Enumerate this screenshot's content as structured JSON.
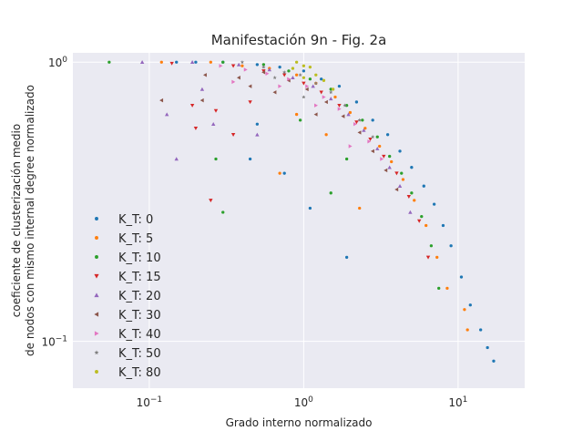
{
  "chart_data": {
    "type": "scatter",
    "title": "Manifestación 9n - Fig. 2a",
    "xlabel": "Grado interno normalizado",
    "ylabel_line1": "coeficiente de clusterización medio",
    "ylabel_line2": "de nodos con mismo internal degree normalizado",
    "x_scale": "log",
    "y_scale": "log",
    "xlim": [
      0.032,
      27
    ],
    "ylim": [
      0.068,
      1.08
    ],
    "x_ticks": [
      {
        "value": 0.1,
        "base": "10",
        "exp": "−1"
      },
      {
        "value": 1,
        "base": "10",
        "exp": "0"
      },
      {
        "value": 10,
        "base": "10",
        "exp": "1"
      }
    ],
    "y_ticks": [
      {
        "value": 0.1,
        "base": "10",
        "exp": "−1"
      },
      {
        "value": 1,
        "base": "10",
        "exp": "0"
      }
    ],
    "grid": true,
    "legend_position": "lower-left",
    "series": [
      {
        "name": "K_T: 0",
        "color": "#1f77b4",
        "marker": "circle",
        "points": [
          [
            0.15,
            1.0
          ],
          [
            0.2,
            1.0
          ],
          [
            0.3,
            1.0
          ],
          [
            0.5,
            0.98
          ],
          [
            0.7,
            0.96
          ],
          [
            1.0,
            0.93
          ],
          [
            1.3,
            0.87
          ],
          [
            1.7,
            0.82
          ],
          [
            2.2,
            0.72
          ],
          [
            2.8,
            0.62
          ],
          [
            3.5,
            0.55
          ],
          [
            4.2,
            0.48
          ],
          [
            5.0,
            0.42
          ],
          [
            6.0,
            0.36
          ],
          [
            7.0,
            0.31
          ],
          [
            8.0,
            0.26
          ],
          [
            9.0,
            0.22
          ],
          [
            10.5,
            0.17
          ],
          [
            12.0,
            0.135
          ],
          [
            14.0,
            0.11
          ],
          [
            15.5,
            0.095
          ],
          [
            17.0,
            0.085
          ],
          [
            0.45,
            0.45
          ],
          [
            1.1,
            0.3
          ],
          [
            1.9,
            0.2
          ],
          [
            0.75,
            0.4
          ],
          [
            0.5,
            0.6
          ]
        ]
      },
      {
        "name": "K_T: 5",
        "color": "#ff7f0e",
        "marker": "circle",
        "points": [
          [
            0.12,
            1.0
          ],
          [
            0.25,
            1.0
          ],
          [
            0.4,
            0.97
          ],
          [
            0.6,
            0.95
          ],
          [
            0.9,
            0.9
          ],
          [
            1.2,
            0.84
          ],
          [
            1.6,
            0.75
          ],
          [
            2.0,
            0.66
          ],
          [
            2.5,
            0.58
          ],
          [
            3.1,
            0.5
          ],
          [
            3.7,
            0.44
          ],
          [
            4.4,
            0.38
          ],
          [
            5.2,
            0.32
          ],
          [
            6.2,
            0.26
          ],
          [
            7.3,
            0.2
          ],
          [
            8.5,
            0.155
          ],
          [
            11.0,
            0.13
          ],
          [
            11.5,
            0.11
          ],
          [
            0.7,
            0.4
          ],
          [
            1.4,
            0.55
          ],
          [
            2.3,
            0.3
          ],
          [
            0.9,
            0.65
          ]
        ]
      },
      {
        "name": "K_T: 10",
        "color": "#2ca02c",
        "marker": "circle",
        "points": [
          [
            0.055,
            1.0
          ],
          [
            0.3,
            1.0
          ],
          [
            0.55,
            0.98
          ],
          [
            0.8,
            0.93
          ],
          [
            1.1,
            0.87
          ],
          [
            1.5,
            0.8
          ],
          [
            1.9,
            0.7
          ],
          [
            2.4,
            0.62
          ],
          [
            3.0,
            0.54
          ],
          [
            3.6,
            0.46
          ],
          [
            4.3,
            0.4
          ],
          [
            5.0,
            0.34
          ],
          [
            5.8,
            0.28
          ],
          [
            6.7,
            0.22
          ],
          [
            7.5,
            0.155
          ],
          [
            0.27,
            0.45
          ],
          [
            0.3,
            0.29
          ],
          [
            1.5,
            0.34
          ],
          [
            0.95,
            0.62
          ],
          [
            1.9,
            0.45
          ]
        ]
      },
      {
        "name": "K_T: 15",
        "color": "#d62728",
        "marker": "triangle-down",
        "points": [
          [
            0.14,
            0.99
          ],
          [
            0.35,
            0.97
          ],
          [
            0.55,
            0.93
          ],
          [
            0.75,
            0.9
          ],
          [
            1.0,
            0.84
          ],
          [
            1.3,
            0.78
          ],
          [
            1.7,
            0.7
          ],
          [
            2.2,
            0.61
          ],
          [
            2.7,
            0.53
          ],
          [
            3.3,
            0.46
          ],
          [
            4.0,
            0.4
          ],
          [
            4.8,
            0.33
          ],
          [
            5.6,
            0.27
          ],
          [
            6.4,
            0.2
          ],
          [
            0.25,
            0.32
          ],
          [
            0.2,
            0.58
          ],
          [
            0.19,
            0.7
          ],
          [
            0.27,
            0.67
          ],
          [
            0.35,
            0.55
          ],
          [
            0.45,
            0.72
          ]
        ]
      },
      {
        "name": "K_T: 20",
        "color": "#9467bd",
        "marker": "triangle-up",
        "points": [
          [
            0.09,
            1.0
          ],
          [
            0.19,
            1.0
          ],
          [
            0.38,
            0.98
          ],
          [
            0.6,
            0.94
          ],
          [
            0.85,
            0.88
          ],
          [
            1.15,
            0.82
          ],
          [
            1.5,
            0.74
          ],
          [
            1.95,
            0.65
          ],
          [
            2.45,
            0.57
          ],
          [
            3.0,
            0.49
          ],
          [
            3.6,
            0.42
          ],
          [
            4.2,
            0.36
          ],
          [
            4.9,
            0.29
          ],
          [
            0.13,
            0.65
          ],
          [
            0.15,
            0.45
          ],
          [
            0.22,
            0.8
          ],
          [
            0.5,
            0.55
          ],
          [
            0.26,
            0.6
          ]
        ]
      },
      {
        "name": "K_T: 30",
        "color": "#8c564b",
        "marker": "triangle-left",
        "points": [
          [
            0.12,
            0.73
          ],
          [
            0.23,
            0.9
          ],
          [
            0.38,
            0.88
          ],
          [
            0.55,
            0.92
          ],
          [
            0.8,
            0.86
          ],
          [
            1.05,
            0.8
          ],
          [
            1.4,
            0.72
          ],
          [
            1.8,
            0.64
          ],
          [
            2.3,
            0.56
          ],
          [
            2.8,
            0.48
          ],
          [
            3.4,
            0.41
          ],
          [
            4.0,
            0.35
          ],
          [
            0.22,
            0.73
          ],
          [
            0.65,
            0.78
          ],
          [
            1.2,
            0.65
          ],
          [
            0.45,
            0.82
          ]
        ]
      },
      {
        "name": "K_T: 40",
        "color": "#e377c2",
        "marker": "triangle-right",
        "points": [
          [
            0.29,
            0.97
          ],
          [
            0.42,
            0.94
          ],
          [
            0.58,
            0.91
          ],
          [
            0.8,
            0.87
          ],
          [
            1.05,
            0.82
          ],
          [
            1.35,
            0.75
          ],
          [
            1.7,
            0.68
          ],
          [
            2.15,
            0.6
          ],
          [
            2.65,
            0.52
          ],
          [
            3.2,
            0.45
          ],
          [
            0.35,
            0.85
          ],
          [
            0.7,
            0.82
          ],
          [
            1.2,
            0.7
          ],
          [
            2.0,
            0.5
          ]
        ]
      },
      {
        "name": "K_T: 50",
        "color": "#7f7f7f",
        "marker": "star",
        "points": [
          [
            0.4,
            1.0
          ],
          [
            0.55,
            0.96
          ],
          [
            0.75,
            0.92
          ],
          [
            0.95,
            0.9
          ],
          [
            1.2,
            0.84
          ],
          [
            1.5,
            0.78
          ],
          [
            1.85,
            0.7
          ],
          [
            2.3,
            0.62
          ],
          [
            2.8,
            0.54
          ],
          [
            1.0,
            0.75
          ],
          [
            0.65,
            0.88
          ]
        ]
      },
      {
        "name": "K_T: 80",
        "color": "#bcbd22",
        "marker": "circle",
        "points": [
          [
            0.9,
            1.0
          ],
          [
            1.0,
            0.97
          ],
          [
            1.1,
            0.96
          ],
          [
            0.85,
            0.95
          ],
          [
            1.2,
            0.9
          ],
          [
            1.35,
            0.86
          ],
          [
            1.55,
            0.8
          ],
          [
            1.0,
            0.88
          ]
        ]
      }
    ]
  }
}
